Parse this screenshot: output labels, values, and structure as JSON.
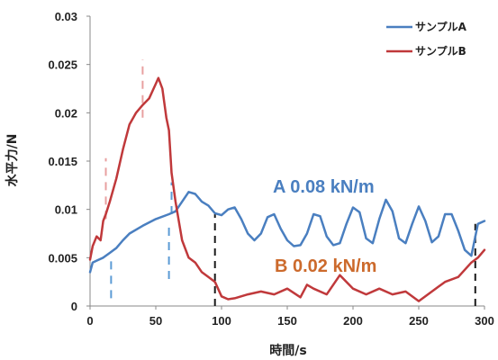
{
  "chart_data": {
    "type": "line",
    "title": "",
    "xlabel": "時間/s",
    "ylabel": "水平力/N",
    "xlim": [
      0,
      300
    ],
    "ylim": [
      0,
      0.03
    ],
    "x_ticks": [
      0,
      50,
      100,
      150,
      200,
      250,
      300
    ],
    "x_tick_labels": [
      "0",
      "50",
      "100",
      "150",
      "200",
      "250",
      "300"
    ],
    "y_ticks": [
      0,
      0.005,
      0.01,
      0.015,
      0.02,
      0.025,
      0.03
    ],
    "y_tick_labels": [
      "0",
      "0.005",
      "0.01",
      "0.015",
      "0.02",
      "0.025",
      "0.03"
    ],
    "grid": false,
    "legend_position": "top-right",
    "series": [
      {
        "name": "サンプルA",
        "color": "#4a7fc0",
        "x": [
          0,
          2,
          5,
          10,
          15,
          20,
          25,
          30,
          40,
          50,
          60,
          65,
          70,
          75,
          80,
          85,
          90,
          95,
          100,
          105,
          110,
          115,
          120,
          125,
          130,
          135,
          140,
          145,
          150,
          155,
          160,
          165,
          170,
          175,
          180,
          185,
          190,
          195,
          200,
          205,
          210,
          215,
          220,
          225,
          230,
          235,
          240,
          245,
          250,
          255,
          260,
          265,
          270,
          275,
          280,
          285,
          290,
          295,
          300
        ],
        "y": [
          0.0035,
          0.0045,
          0.0047,
          0.005,
          0.0055,
          0.006,
          0.0068,
          0.0075,
          0.0083,
          0.009,
          0.0095,
          0.0098,
          0.0108,
          0.0118,
          0.0116,
          0.0108,
          0.0104,
          0.0096,
          0.0094,
          0.01,
          0.0102,
          0.009,
          0.0075,
          0.0068,
          0.0075,
          0.0092,
          0.0095,
          0.008,
          0.0068,
          0.0062,
          0.0063,
          0.0075,
          0.0095,
          0.0093,
          0.0072,
          0.0063,
          0.0065,
          0.0085,
          0.0102,
          0.0097,
          0.007,
          0.0065,
          0.009,
          0.011,
          0.0098,
          0.007,
          0.0065,
          0.0085,
          0.0103,
          0.0088,
          0.0066,
          0.0072,
          0.0095,
          0.0095,
          0.0078,
          0.0058,
          0.0052,
          0.0085,
          0.0088
        ]
      },
      {
        "name": "サンプルB",
        "color": "#c0393b",
        "x": [
          0,
          2,
          5,
          8,
          10,
          12,
          15,
          20,
          25,
          30,
          35,
          40,
          45,
          50,
          52,
          55,
          58,
          60,
          62,
          65,
          70,
          75,
          80,
          85,
          90,
          95,
          100,
          105,
          110,
          120,
          130,
          140,
          150,
          160,
          165,
          170,
          180,
          190,
          200,
          210,
          220,
          230,
          240,
          250,
          260,
          265,
          270,
          280,
          290,
          295,
          300
        ],
        "y": [
          0.0048,
          0.0062,
          0.0072,
          0.0068,
          0.0088,
          0.0095,
          0.0108,
          0.0132,
          0.0162,
          0.0188,
          0.02,
          0.0208,
          0.0215,
          0.023,
          0.0236,
          0.0225,
          0.0195,
          0.0182,
          0.0138,
          0.0108,
          0.0068,
          0.005,
          0.0045,
          0.0035,
          0.003,
          0.0025,
          0.001,
          0.0007,
          0.0008,
          0.0012,
          0.0015,
          0.0012,
          0.0018,
          0.0009,
          0.0022,
          0.0018,
          0.0012,
          0.0032,
          0.0018,
          0.0012,
          0.0018,
          0.0012,
          0.0015,
          0.0005,
          0.0015,
          0.002,
          0.0025,
          0.003,
          0.0045,
          0.005,
          0.0058
        ]
      }
    ],
    "annotations": [
      {
        "text": "A 0.08 kN/m",
        "color": "#4a7fc0"
      },
      {
        "text": "B 0.02 kN/m",
        "color": "#cc6a2c"
      }
    ],
    "marker_lines": [
      {
        "color": "#1a1a1a",
        "x": 95,
        "y_from": 0,
        "y_to": 0.0095
      },
      {
        "color": "#1a1a1a",
        "x": 293,
        "y_from": 0,
        "y_to": 0.0085
      },
      {
        "color": "#e8a0a0",
        "x": 12,
        "y_from": 0.009,
        "y_to": 0.0153
      },
      {
        "color": "#e8a0a0",
        "x": 40,
        "y_from": 0.0195,
        "y_to": 0.0255
      },
      {
        "color": "#5b9bd5",
        "x": 16,
        "y_from": 0.0008,
        "y_to": 0.0052
      },
      {
        "color": "#5b9bd5",
        "x": 60,
        "y_from": 0.0028,
        "y_to": 0.0085
      },
      {
        "color": "#5b9bd5",
        "x": 62,
        "y_from": 0.0095,
        "y_to": 0.0128
      }
    ]
  }
}
